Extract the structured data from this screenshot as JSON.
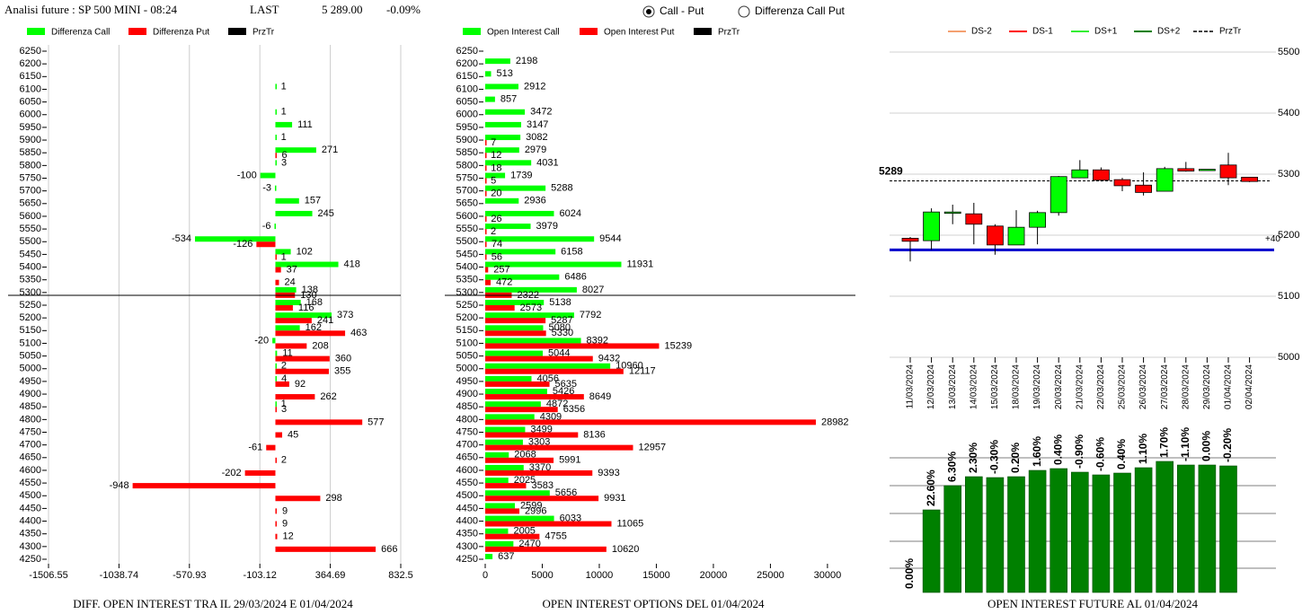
{
  "header": {
    "title": "Analisi future : SP 500 MINI - 08:24",
    "last_label": "LAST",
    "last": "5 289.00",
    "change": "-0.09%"
  },
  "options": [
    {
      "label": "Call - Put",
      "selected": true
    },
    {
      "label": "Differenza Call Put",
      "selected": false
    }
  ],
  "chart_data": [
    {
      "type": "hbar",
      "title": "DIFF. OPEN INTEREST TRA IL 29/03/2024 E 01/04/2024",
      "categories": [
        6250,
        6200,
        6150,
        6100,
        6050,
        6000,
        5950,
        5900,
        5850,
        5800,
        5750,
        5700,
        5650,
        5600,
        5550,
        5500,
        5450,
        5400,
        5350,
        5300,
        5250,
        5200,
        5150,
        5100,
        5050,
        5000,
        4950,
        4900,
        4850,
        4800,
        4750,
        4700,
        4650,
        4600,
        4550,
        4500,
        4450,
        4400,
        4350,
        4300,
        4250
      ],
      "series": [
        {
          "name": "Differenza Call",
          "color": "#00ff00",
          "values": [
            null,
            null,
            null,
            1,
            null,
            1,
            111,
            1,
            271,
            3,
            -100,
            -3,
            157,
            245,
            -6,
            -534,
            102,
            418,
            null,
            138,
            168,
            373,
            162,
            -20,
            11,
            2,
            4,
            null,
            1,
            null,
            null,
            null,
            null,
            null,
            null,
            null,
            null,
            null,
            null,
            null,
            null
          ]
        },
        {
          "name": "Differenza Put",
          "color": "#ff0000",
          "values": [
            null,
            null,
            null,
            null,
            null,
            null,
            null,
            null,
            6,
            null,
            null,
            null,
            null,
            null,
            null,
            -126,
            1,
            37,
            24,
            130,
            116,
            241,
            463,
            208,
            360,
            355,
            92,
            262,
            3,
            577,
            45,
            -61,
            2,
            -202,
            -948,
            298,
            9,
            9,
            12,
            666,
            null
          ]
        }
      ],
      "reference": {
        "name": "PrzTr",
        "color": "#000000",
        "value": 5289
      },
      "xlim": [
        -1506.55,
        832.5
      ],
      "xticks": [
        -1506.55,
        -1038.74,
        -570.93,
        -103.12,
        364.69,
        832.5
      ],
      "grid": true
    },
    {
      "type": "hbar",
      "title": "OPEN INTEREST OPTIONS DEL 01/04/2024",
      "categories": [
        6250,
        6200,
        6150,
        6100,
        6050,
        6000,
        5950,
        5900,
        5850,
        5800,
        5750,
        5700,
        5650,
        5600,
        5550,
        5500,
        5450,
        5400,
        5350,
        5300,
        5250,
        5200,
        5150,
        5100,
        5050,
        5000,
        4950,
        4900,
        4850,
        4800,
        4750,
        4700,
        4650,
        4600,
        4550,
        4500,
        4450,
        4400,
        4350,
        4300,
        4250
      ],
      "series": [
        {
          "name": "Open Interest Call",
          "color": "#00ff00",
          "values": [
            null,
            2198,
            513,
            2912,
            857,
            3472,
            3147,
            3082,
            2979,
            4031,
            1739,
            5288,
            2936,
            6024,
            3979,
            9544,
            6158,
            11931,
            6486,
            8027,
            5138,
            7792,
            5080,
            8392,
            5044,
            10960,
            4056,
            5426,
            4872,
            4309,
            3499,
            3303,
            2068,
            3370,
            2025,
            5656,
            2599,
            6033,
            2005,
            2470,
            637
          ]
        },
        {
          "name": "Open Interest Put",
          "color": "#ff0000",
          "values": [
            null,
            null,
            null,
            null,
            null,
            null,
            null,
            7,
            12,
            18,
            5,
            20,
            null,
            26,
            2,
            74,
            56,
            257,
            472,
            2322,
            2573,
            5287,
            5330,
            15239,
            9432,
            12117,
            5635,
            8649,
            6356,
            28982,
            8136,
            12957,
            5991,
            9393,
            3583,
            9931,
            2996,
            11065,
            4755,
            10620,
            null
          ]
        }
      ],
      "reference": {
        "name": "PrzTr",
        "color": "#000000",
        "value": 5289
      },
      "xlim": [
        0,
        32450
      ],
      "xticks": [
        0,
        5000,
        10000,
        15000,
        20000,
        25000,
        30000
      ],
      "grid": false
    },
    {
      "type": "candlestick",
      "x": [
        "11/03/2024",
        "12/03/2024",
        "13/03/2024",
        "14/03/2024",
        "15/03/2024",
        "18/03/2024",
        "19/03/2024",
        "20/03/2024",
        "21/03/2024",
        "22/03/2024",
        "25/03/2024",
        "26/03/2024",
        "27/03/2024",
        "28/03/2024",
        "29/03/2024",
        "01/04/2024",
        "02/04/2024"
      ],
      "open": [
        5195,
        5191,
        5238,
        5235,
        5215,
        5184,
        5213,
        5237,
        5294,
        5307,
        5291,
        5282,
        5272,
        5309,
        5308,
        5315,
        5295
      ],
      "high": [
        5197,
        5244,
        5250,
        5253,
        5218,
        5241,
        5240,
        5297,
        5323,
        5311,
        5294,
        5303,
        5312,
        5320,
        5308,
        5335,
        5295
      ],
      "low": [
        5157,
        5176,
        5218,
        5185,
        5168,
        5184,
        5185,
        5232,
        5294,
        5288,
        5272,
        5265,
        5272,
        5304,
        5308,
        5282,
        5287
      ],
      "close": [
        5190,
        5238,
        5238,
        5218,
        5184,
        5213,
        5237,
        5296,
        5307,
        5290,
        5281,
        5270,
        5309,
        5305,
        5308,
        5294,
        5288
      ],
      "up_color": "#00ff00",
      "down_color": "#ff0000",
      "legend": [
        {
          "name": "DS-2",
          "color": "#f4a070"
        },
        {
          "name": "DS-1",
          "color": "#ff0000"
        },
        {
          "name": "DS+1",
          "color": "#33ee33"
        },
        {
          "name": "DS+2",
          "color": "#008000"
        }
      ],
      "reference": {
        "name": "PrzTr",
        "color": "#000000",
        "value": 5289
      },
      "levels": [
        {
          "value": 5176,
          "color": "#0000cc",
          "label": "+40"
        }
      ],
      "ylim": [
        5000,
        5500
      ],
      "yticks": [
        5000,
        5100,
        5200,
        5300,
        5400,
        5500
      ],
      "grid": true
    },
    {
      "type": "bar",
      "title": "OPEN INTEREST FUTURE AL 01/04/2024",
      "values": [
        0,
        92,
        119,
        129,
        128,
        129,
        136,
        138,
        134,
        131,
        133,
        139,
        146,
        142,
        142,
        141
      ],
      "change_labels": [
        "0.00%",
        "22.60%",
        "6.30%",
        "2.30%",
        "-0.30%",
        "0.20%",
        "1.60%",
        "0.40%",
        "-0.90%",
        "-0.60%",
        "0.40%",
        "1.10%",
        "1.70%",
        "-1.10%",
        "0.00%",
        "-0.20%"
      ],
      "color": "#008000",
      "ylim": [
        0,
        155
      ],
      "yticks": [
        27,
        57,
        88,
        119,
        150
      ],
      "grid": true
    }
  ]
}
